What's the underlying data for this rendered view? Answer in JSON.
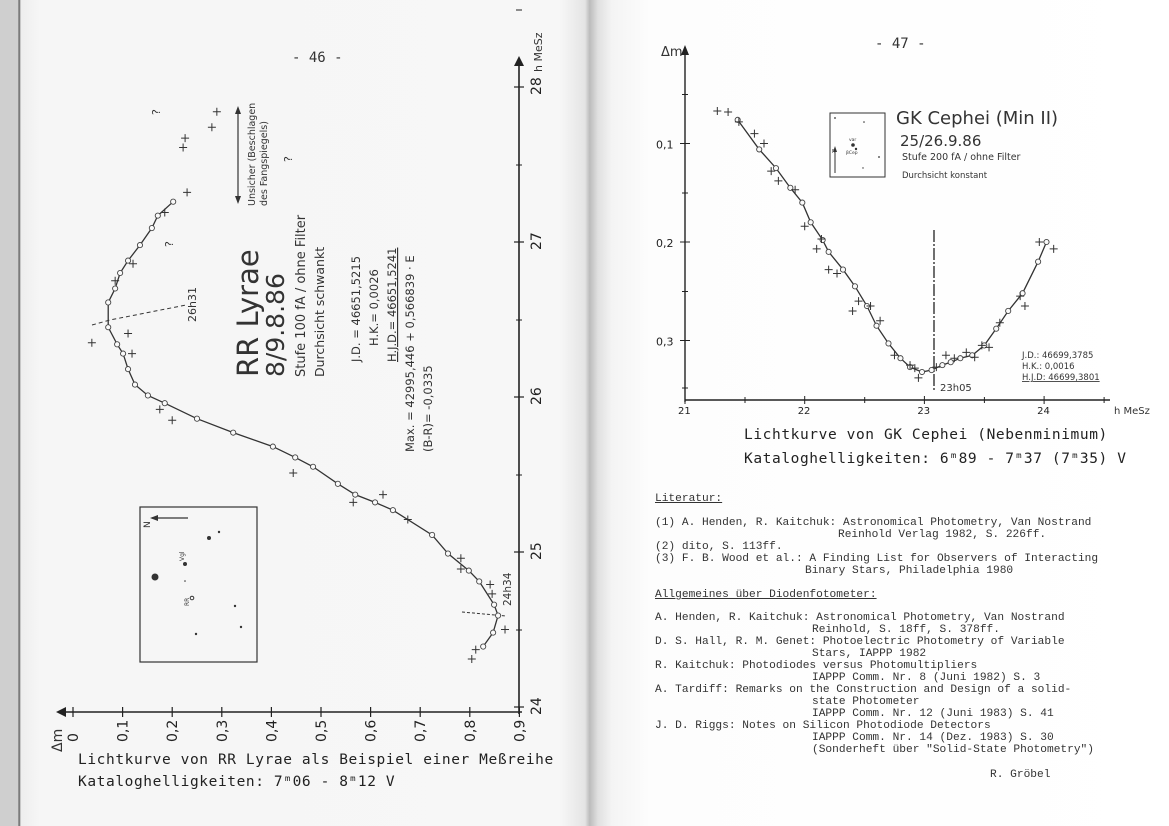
{
  "left_page": {
    "page_number": "- 46 -",
    "caption_line1": "Lichtkurve von RR Lyrae als Beispiel einer Meßreihe",
    "caption_line2": "Kataloghelligkeiten: 7ᵐ06 - 8ᵐ12 V"
  },
  "right_page": {
    "page_number": "- 47 -",
    "caption_line1": "Lichtkurve von GK Cephei (Nebenminimum)",
    "caption_line2": "Kataloghelligkeiten: 6ᵐ89 - 7ᵐ37 (7ᵐ35) V",
    "literature": {
      "heading": "Literatur:",
      "lines": [
        "(1) A. Henden, R. Kaitchuk: Astronomical Photometry, Van Nostrand",
        "Reinhold Verlag 1982, S. 226ff.",
        "(2) dito, S. 113ff.",
        "(3) F. B. Wood et al.: A Finding List for Observers of Interacting",
        "Binary Stars, Philadelphia 1980"
      ]
    },
    "general": {
      "heading": "Allgemeines über Diodenfotometer:",
      "lines": [
        "A. Henden, R. Kaitchuk: Astronomical Photometry, Van Nostrand",
        "Reinhold, S. 18ff, S. 378ff.",
        "D. S. Hall, R. M. Genet: Photoelectric Photometry of Variable",
        "Stars, IAPPP 1982",
        "R. Kaitchuk: Photodiodes versus Photomultipliers",
        "IAPPP Comm. Nr. 8 (Juni 1982) S. 3",
        "A. Tardiff: Remarks on the Construction and Design of a solid-",
        "state Photometer",
        "IAPPP Comm. Nr. 12 (Juni 1983) S. 41",
        "J. D. Riggs: Notes on Silicon Photodiode Detectors",
        "IAPPP Comm. Nr. 14 (Dez. 1983) S. 30",
        "(Sonderheft über \"Solid-State Photometry\")"
      ]
    },
    "author": "R. Gröbel"
  },
  "chart_data": [
    {
      "type": "scatter",
      "orientation": "rotated 90° (time axis vertical)",
      "title": "RR Lyrae",
      "date": "8/9.8.86",
      "notes": [
        "Stufe 100 fA / ohne Filter",
        "Durchsicht schwankt"
      ],
      "jd": "J.D. = 46651,5215",
      "hk": "H.K.= 0,0026",
      "hjd": "H.J.D.= 46651,5241",
      "max_formula": "Max. = 42995,446 + 0,566839 · E",
      "b_r": "(B-R)= -0,0335",
      "uncertain_note_1": "Unsicher (Beschlagen",
      "uncertain_note_2": "des Fangspiegels)",
      "max_label": "26h31",
      "min_label": "24h34",
      "question_mark": "?",
      "ylabel": "Δm",
      "xlabel": "h MeSz",
      "x_ticks": [
        "24",
        "25",
        "26",
        "27",
        "28"
      ],
      "y_ticks": [
        "0",
        "0,1",
        "0,2",
        "0,3",
        "0,4",
        "0,5",
        "0,6",
        "0,7",
        "0,8",
        "0,9"
      ],
      "xlim": [
        24,
        28
      ],
      "ylim": [
        0,
        0.9
      ],
      "finder": {
        "north": "N",
        "var": "RR",
        "comp": "Vgl"
      },
      "series": [
        {
          "marker": "circle",
          "points": [
            [
              24.39,
              0.827
            ],
            [
              24.48,
              0.847
            ],
            [
              24.59,
              0.857
            ],
            [
              24.66,
              0.849
            ],
            [
              24.81,
              0.819
            ],
            [
              24.88,
              0.798
            ],
            [
              24.99,
              0.756
            ],
            [
              25.11,
              0.724
            ],
            [
              25.27,
              0.645
            ],
            [
              25.32,
              0.609
            ],
            [
              25.37,
              0.569
            ],
            [
              25.44,
              0.534
            ],
            [
              25.55,
              0.484
            ],
            [
              25.61,
              0.448
            ],
            [
              25.68,
              0.403
            ],
            [
              25.77,
              0.323
            ],
            [
              25.86,
              0.25
            ],
            [
              25.96,
              0.185
            ],
            [
              26.01,
              0.151
            ],
            [
              26.08,
              0.125
            ],
            [
              26.18,
              0.111
            ],
            [
              26.28,
              0.101
            ],
            [
              26.34,
              0.089
            ],
            [
              26.45,
              0.071
            ],
            [
              26.61,
              0.071
            ],
            [
              26.7,
              0.085
            ],
            [
              26.8,
              0.095
            ],
            [
              26.88,
              0.111
            ],
            [
              26.98,
              0.135
            ],
            [
              27.09,
              0.159
            ],
            [
              27.17,
              0.171
            ],
            [
              27.26,
              0.202
            ]
          ]
        },
        {
          "marker": "cross",
          "points": [
            [
              24.31,
              0.804
            ],
            [
              24.37,
              0.812
            ],
            [
              24.5,
              0.871
            ],
            [
              24.73,
              0.845
            ],
            [
              24.79,
              0.841
            ],
            [
              24.89,
              0.782
            ],
            [
              24.96,
              0.782
            ],
            [
              25.21,
              0.675
            ],
            [
              25.32,
              0.565
            ],
            [
              25.37,
              0.625
            ],
            [
              25.51,
              0.444
            ],
            [
              25.85,
              0.2
            ],
            [
              25.92,
              0.175
            ],
            [
              26.28,
              0.119
            ],
            [
              26.35,
              0.038
            ],
            [
              26.41,
              0.111
            ],
            [
              26.75,
              0.085
            ],
            [
              26.86,
              0.121
            ],
            [
              27.19,
              0.185
            ],
            [
              27.32,
              0.23
            ],
            [
              27.61,
              0.222
            ],
            [
              27.67,
              0.226
            ],
            [
              27.74,
              0.28
            ],
            [
              27.84,
              0.29
            ]
          ]
        }
      ]
    },
    {
      "type": "scatter",
      "title": "GK Cephei (Min II)",
      "date": "25/26.9.86",
      "notes": [
        "Stufe 200 fA / ohne Filter",
        "Durchsicht konstant"
      ],
      "jd": "J.D.: 46699,3785",
      "hk": "H.K.: 0,0016",
      "hjd": "H.J.D: 46699,3801",
      "min_label": "23h05",
      "ylabel": "Δm",
      "xlabel": "h MeSz",
      "x_ticks": [
        "21",
        "22",
        "23",
        "24"
      ],
      "y_ticks": [
        "0,1",
        "0,2",
        "0,3"
      ],
      "xlim": [
        21,
        24.2
      ],
      "ylim": [
        0,
        0.36
      ],
      "finder": {
        "north": "N",
        "var": "var",
        "comp": "βCep"
      },
      "series": [
        {
          "marker": "circle",
          "points": [
            [
              21.44,
              0.076
            ],
            [
              21.62,
              0.106
            ],
            [
              21.76,
              0.125
            ],
            [
              21.88,
              0.145
            ],
            [
              21.98,
              0.16
            ],
            [
              22.05,
              0.18
            ],
            [
              22.15,
              0.198
            ],
            [
              22.2,
              0.21
            ],
            [
              22.32,
              0.228
            ],
            [
              22.42,
              0.245
            ],
            [
              22.52,
              0.265
            ],
            [
              22.6,
              0.285
            ],
            [
              22.7,
              0.303
            ],
            [
              22.8,
              0.318
            ],
            [
              22.88,
              0.327
            ],
            [
              22.98,
              0.332
            ],
            [
              23.06,
              0.33
            ],
            [
              23.15,
              0.325
            ],
            [
              23.22,
              0.322
            ],
            [
              23.3,
              0.318
            ],
            [
              23.4,
              0.315
            ],
            [
              23.5,
              0.305
            ],
            [
              23.6,
              0.288
            ],
            [
              23.7,
              0.27
            ],
            [
              23.82,
              0.252
            ],
            [
              23.95,
              0.22
            ],
            [
              24.02,
              0.2
            ]
          ]
        },
        {
          "marker": "cross",
          "points": [
            [
              21.27,
              0.067
            ],
            [
              21.36,
              0.068
            ],
            [
              21.45,
              0.078
            ],
            [
              21.58,
              0.09
            ],
            [
              21.66,
              0.1
            ],
            [
              21.72,
              0.128
            ],
            [
              21.78,
              0.138
            ],
            [
              21.92,
              0.147
            ],
            [
              22.0,
              0.184
            ],
            [
              22.14,
              0.197
            ],
            [
              22.1,
              0.207
            ],
            [
              22.2,
              0.228
            ],
            [
              22.27,
              0.232
            ],
            [
              22.4,
              0.27
            ],
            [
              22.45,
              0.26
            ],
            [
              22.55,
              0.265
            ],
            [
              22.63,
              0.28
            ],
            [
              22.75,
              0.315
            ],
            [
              22.88,
              0.325
            ],
            [
              22.92,
              0.328
            ],
            [
              22.95,
              0.338
            ],
            [
              23.1,
              0.327
            ],
            [
              23.18,
              0.315
            ],
            [
              23.25,
              0.318
            ],
            [
              23.35,
              0.312
            ],
            [
              23.42,
              0.317
            ],
            [
              23.48,
              0.305
            ],
            [
              23.54,
              0.307
            ],
            [
              23.63,
              0.282
            ],
            [
              23.8,
              0.255
            ],
            [
              23.84,
              0.265
            ],
            [
              23.96,
              0.2
            ],
            [
              24.08,
              0.207
            ]
          ]
        }
      ]
    }
  ]
}
